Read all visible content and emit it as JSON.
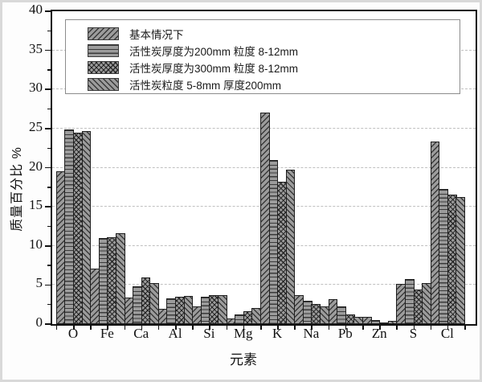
{
  "chart_data": {
    "type": "bar",
    "title": "",
    "xlabel": "元素",
    "ylabel": "质量百分比  %",
    "ylim": [
      0,
      40
    ],
    "yticks": [
      0,
      5,
      10,
      15,
      20,
      25,
      30,
      35,
      40
    ],
    "y_minor_tick_step": 2.5,
    "grid": "horizontal dashed lines at major ticks 5-35",
    "legend_position": "top inside plot area, framed box",
    "categories": [
      "O",
      "Fe",
      "Ca",
      "Al",
      "Si",
      "Mg",
      "K",
      "Na",
      "Pb",
      "Zn",
      "S",
      "Cl"
    ],
    "series": [
      {
        "name": "基本情况下",
        "hatch": "/",
        "values": [
          19.5,
          7.1,
          3.4,
          2.0,
          2.3,
          0.7,
          27.0,
          3.7,
          3.2,
          0.9,
          5.1,
          23.3
        ]
      },
      {
        "name": "活性炭厚度为200mm 粒度 8-12mm",
        "hatch": "-",
        "values": [
          24.9,
          11.0,
          4.8,
          3.3,
          3.5,
          1.2,
          21.0,
          3.0,
          2.3,
          0.5,
          5.8,
          17.3
        ]
      },
      {
        "name": "活性炭厚度为300mm 粒度 8-12mm",
        "hatch": "x",
        "values": [
          24.5,
          11.1,
          6.0,
          3.5,
          3.7,
          1.6,
          18.2,
          2.6,
          1.2,
          0.2,
          4.4,
          16.6
        ]
      },
      {
        "name": "活性炭粒度 5-8mm 厚度200mm",
        "hatch": "\\",
        "values": [
          24.7,
          11.6,
          5.2,
          3.6,
          3.7,
          2.1,
          19.7,
          2.3,
          0.9,
          0.4,
          5.2,
          16.2
        ]
      }
    ],
    "colors": {
      "bar_fill": "#9c9c9c",
      "bar_edge": "#1f1f1f",
      "hatch_line": "#3a3a3a",
      "grid_line": "#c0c0c0",
      "axis": "#111111",
      "legend_border": "#8c8c8c",
      "background": "#ffffff"
    }
  }
}
